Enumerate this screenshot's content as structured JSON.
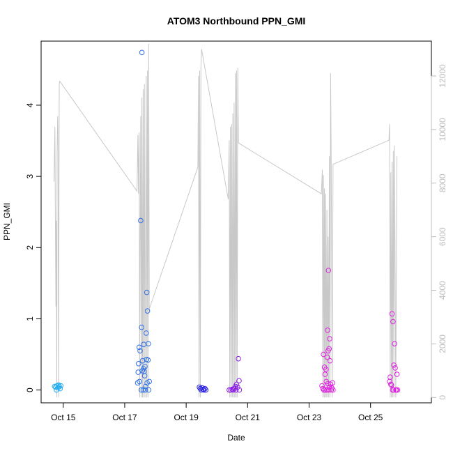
{
  "chart_data": {
    "type": "scatter",
    "title": "ATOM3 Northbound PPN_GMI",
    "xlabel": "Date",
    "ylabel": "PPN_GMI",
    "x_ticks": [
      "Oct 15",
      "Oct 17",
      "Oct 19",
      "Oct 21",
      "Oct 23",
      "Oct 25"
    ],
    "x_tick_days": [
      15,
      17,
      19,
      21,
      23,
      25
    ],
    "xlim": [
      14.28,
      26.98
    ],
    "y_ticks": [
      0,
      1,
      2,
      3,
      4
    ],
    "ylim": [
      -0.18,
      4.9
    ],
    "y2_ticks": [
      0,
      2000,
      4000,
      6000,
      8000,
      10000,
      12000
    ],
    "y2lim": [
      -200,
      13300
    ],
    "grid": false,
    "series": [
      {
        "kind": "points",
        "color": "#1ea9f0",
        "points": [
          [
            14.72,
            0.05
          ],
          [
            14.75,
            0.04
          ],
          [
            14.78,
            0.0
          ],
          [
            14.8,
            0.06
          ],
          [
            14.83,
            0.03
          ],
          [
            14.85,
            0.07
          ],
          [
            14.87,
            0.05
          ],
          [
            14.9,
            0.02
          ],
          [
            14.92,
            0.06
          ]
        ]
      },
      {
        "kind": "points",
        "color": "#2f6fe6",
        "points": [
          [
            17.42,
            0.1
          ],
          [
            17.44,
            0.25
          ],
          [
            17.45,
            0.37
          ],
          [
            17.47,
            0.6
          ],
          [
            17.48,
            0.12
          ],
          [
            17.5,
            0.55
          ],
          [
            17.52,
            2.38
          ],
          [
            17.54,
            0.0
          ],
          [
            17.55,
            0.88
          ],
          [
            17.56,
            4.74
          ],
          [
            17.57,
            0.27
          ],
          [
            17.58,
            0.41
          ],
          [
            17.6,
            0.0
          ],
          [
            17.61,
            0.3
          ],
          [
            17.62,
            0.64
          ],
          [
            17.63,
            0.26
          ],
          [
            17.65,
            0.2
          ],
          [
            17.66,
            0.33
          ],
          [
            17.67,
            0.0
          ],
          [
            17.68,
            0.05
          ],
          [
            17.7,
            0.8
          ],
          [
            17.71,
            0.43
          ],
          [
            17.72,
            1.37
          ],
          [
            17.73,
            0.1
          ],
          [
            17.74,
            1.11
          ],
          [
            17.76,
            0.42
          ],
          [
            17.77,
            0.65
          ],
          [
            17.78,
            0.0
          ],
          [
            17.8,
            0.12
          ]
        ]
      },
      {
        "kind": "points",
        "color": "#2a22e0",
        "points": [
          [
            19.43,
            0.04
          ],
          [
            19.46,
            0.02
          ],
          [
            19.49,
            0.0
          ],
          [
            19.52,
            0.03
          ],
          [
            19.55,
            0.01
          ],
          [
            19.58,
            0.0
          ],
          [
            19.61,
            0.02
          ],
          [
            19.64,
            0.0
          ]
        ]
      },
      {
        "kind": "points",
        "color": "#8a1ee6",
        "points": [
          [
            20.4,
            0.0
          ],
          [
            20.45,
            0.0
          ],
          [
            20.5,
            0.01
          ],
          [
            20.53,
            0.0
          ],
          [
            20.56,
            0.02
          ],
          [
            20.6,
            0.05
          ],
          [
            20.62,
            0.0
          ],
          [
            20.64,
            0.08
          ],
          [
            20.67,
            0.04
          ],
          [
            20.7,
            0.44
          ],
          [
            20.72,
            0.13
          ],
          [
            20.73,
            0.0
          ]
        ]
      },
      {
        "kind": "points",
        "color": "#e01fe0",
        "points": [
          [
            23.42,
            0.06
          ],
          [
            23.45,
            0.02
          ],
          [
            23.47,
            0.5
          ],
          [
            23.48,
            0.0
          ],
          [
            23.5,
            0.32
          ],
          [
            23.52,
            0.22
          ],
          [
            23.53,
            0.0
          ],
          [
            23.55,
            0.29
          ],
          [
            23.56,
            0.12
          ],
          [
            23.58,
            0.0
          ],
          [
            23.59,
            0.46
          ],
          [
            23.6,
            0.84
          ],
          [
            23.61,
            0.09
          ],
          [
            23.62,
            0.55
          ],
          [
            23.63,
            1.68
          ],
          [
            23.64,
            0.0
          ],
          [
            23.65,
            0.58
          ],
          [
            23.66,
            0.04
          ],
          [
            23.67,
            0.72
          ],
          [
            23.68,
            0.41
          ],
          [
            23.7,
            0.08
          ],
          [
            23.72,
            0.0
          ],
          [
            23.74,
            0.03
          ],
          [
            23.76,
            0.1
          ],
          [
            23.78,
            0.0
          ],
          [
            25.62,
            0.12
          ],
          [
            25.64,
            0.18
          ],
          [
            25.66,
            0.08
          ],
          [
            25.68,
            0.07
          ],
          [
            25.7,
            1.07
          ],
          [
            25.72,
            0.0
          ],
          [
            25.73,
            0.96
          ],
          [
            25.75,
            0.0
          ],
          [
            25.76,
            0.35
          ],
          [
            25.78,
            0.65
          ],
          [
            25.8,
            0.31
          ],
          [
            25.82,
            0.0
          ],
          [
            25.84,
            0.0
          ],
          [
            25.86,
            0.22
          ],
          [
            25.88,
            0.0
          ]
        ]
      },
      {
        "kind": "line",
        "axis": "right",
        "color": "#c8c8c8",
        "points": [
          [
            14.7,
            8050
          ],
          [
            14.73,
            10100
          ],
          [
            14.74,
            7400
          ],
          [
            14.76,
            3400
          ],
          [
            14.77,
            6600
          ],
          [
            14.79,
            0
          ],
          [
            14.8,
            9100
          ],
          [
            14.82,
            10500
          ],
          [
            14.83,
            9500
          ],
          [
            14.85,
            0
          ],
          [
            14.87,
            11700
          ],
          [
            14.89,
            11800
          ],
          [
            17.4,
            7700
          ],
          [
            17.43,
            9800
          ],
          [
            17.45,
            7600
          ],
          [
            17.47,
            9900
          ],
          [
            17.49,
            0
          ],
          [
            17.5,
            5300
          ],
          [
            17.52,
            10500
          ],
          [
            17.54,
            0
          ],
          [
            17.56,
            11200
          ],
          [
            17.58,
            0
          ],
          [
            17.6,
            11500
          ],
          [
            17.62,
            0
          ],
          [
            17.64,
            11700
          ],
          [
            17.66,
            0
          ],
          [
            17.7,
            12000
          ],
          [
            17.72,
            0
          ],
          [
            17.74,
            12200
          ],
          [
            17.76,
            0
          ],
          [
            17.78,
            13200
          ],
          [
            17.8,
            3300
          ],
          [
            19.38,
            8600
          ],
          [
            19.4,
            12000
          ],
          [
            19.42,
            0
          ],
          [
            19.44,
            12200
          ],
          [
            19.46,
            0
          ],
          [
            19.48,
            12300
          ],
          [
            19.5,
            13000
          ],
          [
            20.37,
            7400
          ],
          [
            20.4,
            9600
          ],
          [
            20.42,
            0
          ],
          [
            20.44,
            10100
          ],
          [
            20.46,
            0
          ],
          [
            20.48,
            10200
          ],
          [
            20.5,
            0
          ],
          [
            20.52,
            10600
          ],
          [
            20.54,
            0
          ],
          [
            20.56,
            11000
          ],
          [
            20.58,
            0
          ],
          [
            20.6,
            12100
          ],
          [
            20.62,
            0
          ],
          [
            20.64,
            12200
          ],
          [
            20.66,
            0
          ],
          [
            20.68,
            12300
          ],
          [
            20.7,
            9500
          ],
          [
            23.4,
            7600
          ],
          [
            23.43,
            8500
          ],
          [
            23.45,
            0
          ],
          [
            23.47,
            8300
          ],
          [
            23.49,
            0
          ],
          [
            23.5,
            7800
          ],
          [
            23.52,
            0
          ],
          [
            23.54,
            7600
          ],
          [
            23.56,
            0
          ],
          [
            23.58,
            7000
          ],
          [
            23.6,
            0
          ],
          [
            23.62,
            6000
          ],
          [
            23.64,
            0
          ],
          [
            23.66,
            9000
          ],
          [
            23.68,
            0
          ],
          [
            23.7,
            12100
          ],
          [
            23.72,
            8600
          ],
          [
            23.75,
            0
          ],
          [
            23.78,
            8700
          ],
          [
            25.6,
            9600
          ],
          [
            25.62,
            10200
          ],
          [
            25.64,
            0
          ],
          [
            25.66,
            8400
          ],
          [
            25.68,
            0
          ],
          [
            25.7,
            8800
          ],
          [
            25.72,
            0
          ],
          [
            25.74,
            9200
          ],
          [
            25.76,
            0
          ],
          [
            25.78,
            9400
          ],
          [
            25.82,
            0
          ],
          [
            25.86,
            9000
          ]
        ]
      }
    ]
  }
}
